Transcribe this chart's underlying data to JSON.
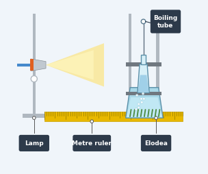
{
  "bg_color": "#f0f5fa",
  "stand_color": "#b0b8c0",
  "stand_dark": "#8a9299",
  "ruler_yellow": "#e8b800",
  "ruler_dark": "#c8a000",
  "label_bg": "#2d3a4a",
  "label_text": "#ffffff",
  "lamp_body_color": "#c0c8d0",
  "lamp_orange": "#e06020",
  "lamp_blue": "#4488cc",
  "light_color": "#fff8c0",
  "light_color2": "#ffe060",
  "beaker_water": "#a8d8e8",
  "beaker_outline": "#5a8fa8",
  "elodea_color": "#4a8a40",
  "clamp_color": "#707880",
  "label_bg_dark": "#2d3a4a",
  "labels": [
    "Lamp",
    "Metre ruler",
    "Elodea"
  ],
  "label_title": "Boiling\ntube"
}
